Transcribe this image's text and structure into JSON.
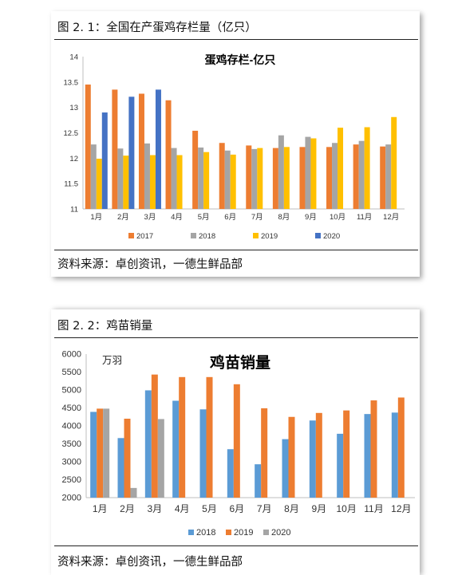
{
  "colors": {
    "2017": "#ED7D31",
    "2018": "#A5A5A5",
    "2019": "#FFC000",
    "2020": "#4472C4",
    "blue2018": "#5B9BD5"
  },
  "fig1": {
    "heading": "图 2. 1：全国在产蛋鸡存栏量（亿只）",
    "source": "资料来源：卓创资讯，一德生鲜品部",
    "chart_data": {
      "type": "bar",
      "title": "蛋鸡存栏-亿只",
      "categories": [
        "1月",
        "2月",
        "3月",
        "4月",
        "5月",
        "6月",
        "7月",
        "8月",
        "9月",
        "10月",
        "11月",
        "12月"
      ],
      "ylim": [
        11,
        14
      ],
      "yticks": [
        "11",
        "11.5",
        "12",
        "12.5",
        "13",
        "13.5",
        "14"
      ],
      "legend_position": "bottom",
      "grid": false,
      "series": [
        {
          "name": "2017",
          "color": "#ED7D31",
          "values": [
            13.45,
            13.35,
            13.27,
            13.14,
            12.54,
            12.3,
            12.25,
            12.2,
            12.22,
            12.22,
            12.27,
            12.23
          ]
        },
        {
          "name": "2018",
          "color": "#A5A5A5",
          "values": [
            12.27,
            12.19,
            12.29,
            12.2,
            12.21,
            12.15,
            12.18,
            12.45,
            12.42,
            12.3,
            12.34,
            12.27
          ]
        },
        {
          "name": "2019",
          "color": "#FFC000",
          "values": [
            11.99,
            12.05,
            12.06,
            12.06,
            12.12,
            12.07,
            12.2,
            12.22,
            12.39,
            12.6,
            12.61,
            12.81
          ]
        },
        {
          "name": "2020",
          "color": "#4472C4",
          "values": [
            12.9,
            13.21,
            13.35,
            null,
            null,
            null,
            null,
            null,
            null,
            null,
            null,
            null
          ]
        }
      ]
    }
  },
  "fig2": {
    "heading": "图 2. 2：鸡苗销量",
    "source": "资料来源：卓创资讯，一德生鲜品部",
    "chart_data": {
      "type": "bar",
      "title": "鸡苗销量",
      "unit": "万羽",
      "categories": [
        "1月",
        "2月",
        "3月",
        "4月",
        "5月",
        "6月",
        "7月",
        "8月",
        "9月",
        "10月",
        "11月",
        "12月"
      ],
      "ylim": [
        2000,
        6000
      ],
      "yticks": [
        "2000",
        "2500",
        "3000",
        "3500",
        "4000",
        "4500",
        "5000",
        "5500",
        "6000"
      ],
      "legend_position": "bottom",
      "grid": false,
      "series": [
        {
          "name": "2018",
          "color": "#5B9BD5",
          "values": [
            4390,
            3660,
            4990,
            4700,
            4460,
            3350,
            2930,
            3630,
            4150,
            3780,
            4330,
            4370
          ]
        },
        {
          "name": "2019",
          "color": "#ED7D31",
          "values": [
            4480,
            4200,
            5430,
            5360,
            5360,
            5160,
            4490,
            4250,
            4360,
            4430,
            4710,
            4790
          ]
        },
        {
          "name": "2020",
          "color": "#A5A5A5",
          "values": [
            4480,
            2270,
            4190,
            null,
            null,
            null,
            null,
            null,
            null,
            null,
            null,
            null
          ]
        }
      ]
    }
  }
}
